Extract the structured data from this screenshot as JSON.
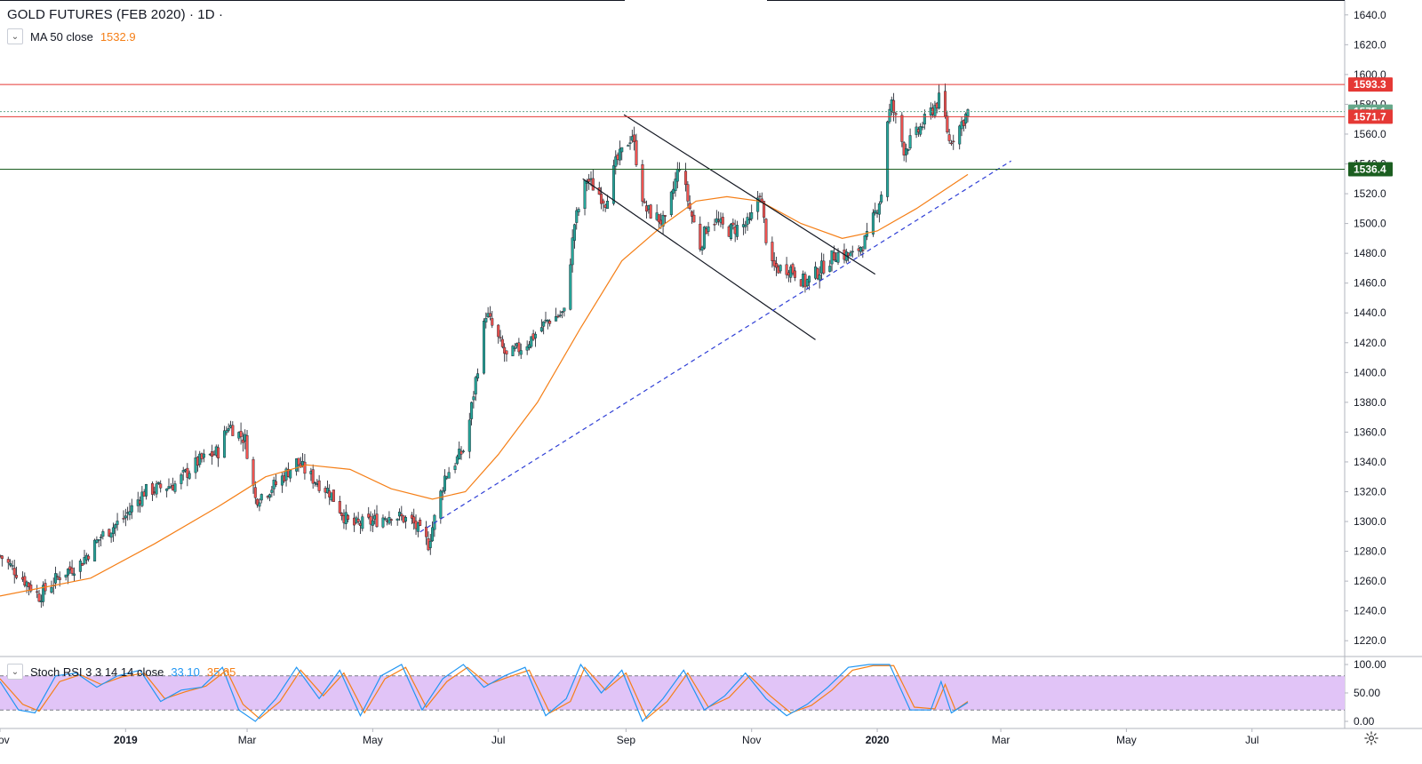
{
  "header": {
    "symbol_title": "GOLD FUTURES (FEB 2020) · 1D ·",
    "ma_label": "MA 50 close",
    "ma_value": "1532.9",
    "stoch_label": "Stoch RSI 3 3 14 14 close",
    "stoch_k_value": "33.10",
    "stoch_d_value": "35.05"
  },
  "icons": {
    "collapse": "chevron-down-icon",
    "settings": "gear-icon"
  },
  "colors": {
    "up": "#26a69a",
    "down": "#ef5350",
    "ma": "#f57f17",
    "stoch_k": "#2196f3",
    "stoch_d": "#f57f17",
    "resistance": "#e53935",
    "support": "#1b5e20",
    "trend": "#2f3fd6",
    "stoch_band": "#e1c4f7",
    "last_price": "#66a88a"
  },
  "chart_data": {
    "type": "candlestick",
    "title": "GOLD FUTURES (FEB 2020) · 1D",
    "price_axis": {
      "ylim": [
        1210,
        1650
      ],
      "ticks": [
        "1220.0",
        "1240.0",
        "1260.0",
        "1280.0",
        "1300.0",
        "1320.0",
        "1340.0",
        "1360.0",
        "1380.0",
        "1400.0",
        "1420.0",
        "1440.0",
        "1460.0",
        "1480.0",
        "1500.0",
        "1520.0",
        "1540.0",
        "1560.0",
        "1580.0",
        "1600.0",
        "1620.0",
        "1640.0"
      ]
    },
    "time_axis": {
      "range": [
        "2018-11-01",
        "2020-08-15"
      ],
      "ticks": [
        {
          "label": "Nov",
          "date": "2018-11-01",
          "bold": false
        },
        {
          "label": "2019",
          "date": "2019-01-01",
          "bold": true
        },
        {
          "label": "Mar",
          "date": "2019-03-01",
          "bold": false
        },
        {
          "label": "May",
          "date": "2019-05-01",
          "bold": false
        },
        {
          "label": "Jul",
          "date": "2019-07-01",
          "bold": false
        },
        {
          "label": "Sep",
          "date": "2019-09-01",
          "bold": false
        },
        {
          "label": "Nov",
          "date": "2019-11-01",
          "bold": false
        },
        {
          "label": "2020",
          "date": "2020-01-01",
          "bold": true
        },
        {
          "label": "Mar",
          "date": "2020-03-01",
          "bold": false
        },
        {
          "label": "May",
          "date": "2020-05-01",
          "bold": false
        },
        {
          "label": "Jul",
          "date": "2020-07-01",
          "bold": false
        }
      ]
    },
    "price_path": [
      [
        "2018-11-01",
        1277
      ],
      [
        "2018-11-12",
        1262
      ],
      [
        "2018-11-20",
        1250
      ],
      [
        "2018-12-01",
        1265
      ],
      [
        "2018-12-10",
        1272
      ],
      [
        "2018-12-20",
        1290
      ],
      [
        "2018-12-31",
        1302
      ],
      [
        "2019-01-10",
        1320
      ],
      [
        "2019-01-25",
        1325
      ],
      [
        "2019-02-05",
        1340
      ],
      [
        "2019-02-15",
        1347
      ],
      [
        "2019-02-20",
        1365
      ],
      [
        "2019-02-28",
        1355
      ],
      [
        "2019-03-05",
        1315
      ],
      [
        "2019-03-15",
        1325
      ],
      [
        "2019-03-25",
        1340
      ],
      [
        "2019-04-01",
        1330
      ],
      [
        "2019-04-10",
        1320
      ],
      [
        "2019-04-20",
        1297
      ],
      [
        "2019-05-01",
        1300
      ],
      [
        "2019-05-10",
        1305
      ],
      [
        "2019-05-20",
        1300
      ],
      [
        "2019-05-28",
        1285
      ],
      [
        "2019-06-05",
        1330
      ],
      [
        "2019-06-15",
        1350
      ],
      [
        "2019-06-20",
        1395
      ],
      [
        "2019-06-25",
        1440
      ],
      [
        "2019-07-05",
        1410
      ],
      [
        "2019-07-15",
        1420
      ],
      [
        "2019-07-25",
        1435
      ],
      [
        "2019-08-02",
        1440
      ],
      [
        "2019-08-07",
        1500
      ],
      [
        "2019-08-13",
        1530
      ],
      [
        "2019-08-22",
        1515
      ],
      [
        "2019-08-27",
        1540
      ],
      [
        "2019-09-04",
        1560
      ],
      [
        "2019-09-10",
        1510
      ],
      [
        "2019-09-20",
        1500
      ],
      [
        "2019-09-27",
        1540
      ],
      [
        "2019-10-02",
        1510
      ],
      [
        "2019-10-07",
        1485
      ],
      [
        "2019-10-12",
        1505
      ],
      [
        "2019-10-20",
        1495
      ],
      [
        "2019-10-31",
        1500
      ],
      [
        "2019-11-05",
        1522
      ],
      [
        "2019-11-10",
        1470
      ],
      [
        "2019-11-20",
        1470
      ],
      [
        "2019-11-27",
        1460
      ],
      [
        "2019-12-05",
        1470
      ],
      [
        "2019-12-12",
        1480
      ],
      [
        "2019-12-20",
        1478
      ],
      [
        "2019-12-27",
        1490
      ],
      [
        "2020-01-03",
        1520
      ],
      [
        "2020-01-06",
        1570
      ],
      [
        "2020-01-08",
        1580
      ],
      [
        "2020-01-14",
        1550
      ],
      [
        "2020-01-20",
        1560
      ],
      [
        "2020-01-27",
        1575
      ],
      [
        "2020-02-01",
        1585
      ],
      [
        "2020-02-05",
        1555
      ],
      [
        "2020-02-10",
        1565
      ],
      [
        "2020-02-14",
        1575
      ]
    ],
    "ma50_path": [
      [
        "2018-11-01",
        1250
      ],
      [
        "2018-12-15",
        1262
      ],
      [
        "2019-01-15",
        1285
      ],
      [
        "2019-02-15",
        1310
      ],
      [
        "2019-03-10",
        1330
      ],
      [
        "2019-03-30",
        1338
      ],
      [
        "2019-04-20",
        1335
      ],
      [
        "2019-05-10",
        1322
      ],
      [
        "2019-05-30",
        1315
      ],
      [
        "2019-06-15",
        1320
      ],
      [
        "2019-07-01",
        1345
      ],
      [
        "2019-07-20",
        1380
      ],
      [
        "2019-08-10",
        1430
      ],
      [
        "2019-08-30",
        1475
      ],
      [
        "2019-09-20",
        1500
      ],
      [
        "2019-10-05",
        1515
      ],
      [
        "2019-10-20",
        1518
      ],
      [
        "2019-11-05",
        1515
      ],
      [
        "2019-11-25",
        1500
      ],
      [
        "2019-12-15",
        1490
      ],
      [
        "2020-01-01",
        1495
      ],
      [
        "2020-01-20",
        1510
      ],
      [
        "2020-02-14",
        1532.9
      ]
    ],
    "horizontal_levels": [
      {
        "label": "1593.3",
        "value": 1593.3,
        "color": "#e53935",
        "style": "solid"
      },
      {
        "label": "1575.1",
        "value": 1575.1,
        "color": "#66a88a",
        "style": "dotted"
      },
      {
        "label": "1571.7",
        "value": 1571.7,
        "color": "#e53935",
        "style": "solid"
      },
      {
        "label": "1536.4",
        "value": 1536.4,
        "color": "#1b5e20",
        "style": "solid"
      }
    ],
    "trend_lines": [
      {
        "kind": "channel-upper",
        "from": [
          "2019-08-31",
          1573
        ],
        "to": [
          "2019-12-31",
          1466
        ],
        "style": "solid",
        "color": "#131722"
      },
      {
        "kind": "channel-lower",
        "from": [
          "2019-08-11",
          1530
        ],
        "to": [
          "2019-12-02",
          1422
        ],
        "style": "solid",
        "color": "#131722"
      },
      {
        "kind": "support",
        "from": [
          "2019-05-24",
          1293
        ],
        "to": [
          "2020-03-06",
          1542
        ],
        "style": "dashed",
        "color": "#2f3fd6"
      }
    ],
    "stoch_rsi": {
      "ylim": [
        0,
        100
      ],
      "ticks": [
        "100.00",
        "50.00",
        "0.00"
      ],
      "bands": [
        20,
        80
      ],
      "k": [
        [
          "2018-11-01",
          70
        ],
        [
          "2018-11-10",
          20
        ],
        [
          "2018-11-18",
          15
        ],
        [
          "2018-11-28",
          80
        ],
        [
          "2018-12-08",
          85
        ],
        [
          "2018-12-18",
          60
        ],
        [
          "2018-12-28",
          80
        ],
        [
          "2019-01-08",
          90
        ],
        [
          "2019-01-18",
          35
        ],
        [
          "2019-01-28",
          55
        ],
        [
          "2019-02-07",
          60
        ],
        [
          "2019-02-17",
          95
        ],
        [
          "2019-02-25",
          20
        ],
        [
          "2019-03-05",
          0
        ],
        [
          "2019-03-15",
          40
        ],
        [
          "2019-03-25",
          95
        ],
        [
          "2019-04-05",
          40
        ],
        [
          "2019-04-15",
          90
        ],
        [
          "2019-04-25",
          10
        ],
        [
          "2019-05-05",
          80
        ],
        [
          "2019-05-15",
          100
        ],
        [
          "2019-05-25",
          20
        ],
        [
          "2019-06-04",
          75
        ],
        [
          "2019-06-14",
          100
        ],
        [
          "2019-06-24",
          60
        ],
        [
          "2019-07-04",
          80
        ],
        [
          "2019-07-14",
          95
        ],
        [
          "2019-07-24",
          10
        ],
        [
          "2019-08-03",
          40
        ],
        [
          "2019-08-10",
          100
        ],
        [
          "2019-08-20",
          50
        ],
        [
          "2019-08-30",
          90
        ],
        [
          "2019-09-09",
          0
        ],
        [
          "2019-09-19",
          40
        ],
        [
          "2019-09-29",
          90
        ],
        [
          "2019-10-09",
          20
        ],
        [
          "2019-10-19",
          45
        ],
        [
          "2019-10-29",
          85
        ],
        [
          "2019-11-08",
          40
        ],
        [
          "2019-11-18",
          10
        ],
        [
          "2019-11-28",
          30
        ],
        [
          "2019-12-08",
          60
        ],
        [
          "2019-12-18",
          95
        ],
        [
          "2019-12-28",
          100
        ],
        [
          "2020-01-07",
          100
        ],
        [
          "2020-01-17",
          20
        ],
        [
          "2020-01-27",
          20
        ],
        [
          "2020-02-01",
          70
        ],
        [
          "2020-02-06",
          15
        ],
        [
          "2020-02-14",
          33.1
        ]
      ],
      "d": [
        [
          "2018-11-01",
          75
        ],
        [
          "2018-11-12",
          30
        ],
        [
          "2018-11-20",
          18
        ],
        [
          "2018-11-30",
          70
        ],
        [
          "2018-12-10",
          82
        ],
        [
          "2018-12-20",
          65
        ],
        [
          "2018-12-30",
          78
        ],
        [
          "2019-01-10",
          85
        ],
        [
          "2019-01-20",
          40
        ],
        [
          "2019-01-30",
          52
        ],
        [
          "2019-02-09",
          62
        ],
        [
          "2019-02-19",
          90
        ],
        [
          "2019-02-27",
          30
        ],
        [
          "2019-03-07",
          5
        ],
        [
          "2019-03-17",
          35
        ],
        [
          "2019-03-27",
          90
        ],
        [
          "2019-04-07",
          45
        ],
        [
          "2019-04-17",
          85
        ],
        [
          "2019-04-27",
          15
        ],
        [
          "2019-05-07",
          75
        ],
        [
          "2019-05-17",
          95
        ],
        [
          "2019-05-27",
          25
        ],
        [
          "2019-06-06",
          70
        ],
        [
          "2019-06-16",
          95
        ],
        [
          "2019-06-26",
          65
        ],
        [
          "2019-07-06",
          78
        ],
        [
          "2019-07-16",
          90
        ],
        [
          "2019-07-26",
          15
        ],
        [
          "2019-08-05",
          35
        ],
        [
          "2019-08-12",
          95
        ],
        [
          "2019-08-22",
          55
        ],
        [
          "2019-09-01",
          85
        ],
        [
          "2019-09-11",
          5
        ],
        [
          "2019-09-21",
          35
        ],
        [
          "2019-10-01",
          85
        ],
        [
          "2019-10-11",
          25
        ],
        [
          "2019-10-21",
          42
        ],
        [
          "2019-10-31",
          80
        ],
        [
          "2019-11-10",
          45
        ],
        [
          "2019-11-20",
          15
        ],
        [
          "2019-11-30",
          28
        ],
        [
          "2019-12-10",
          55
        ],
        [
          "2019-12-20",
          90
        ],
        [
          "2019-12-30",
          98
        ],
        [
          "2020-01-09",
          98
        ],
        [
          "2020-01-19",
          25
        ],
        [
          "2020-01-29",
          22
        ],
        [
          "2020-02-03",
          65
        ],
        [
          "2020-02-08",
          20
        ],
        [
          "2020-02-14",
          35.05
        ]
      ]
    }
  }
}
